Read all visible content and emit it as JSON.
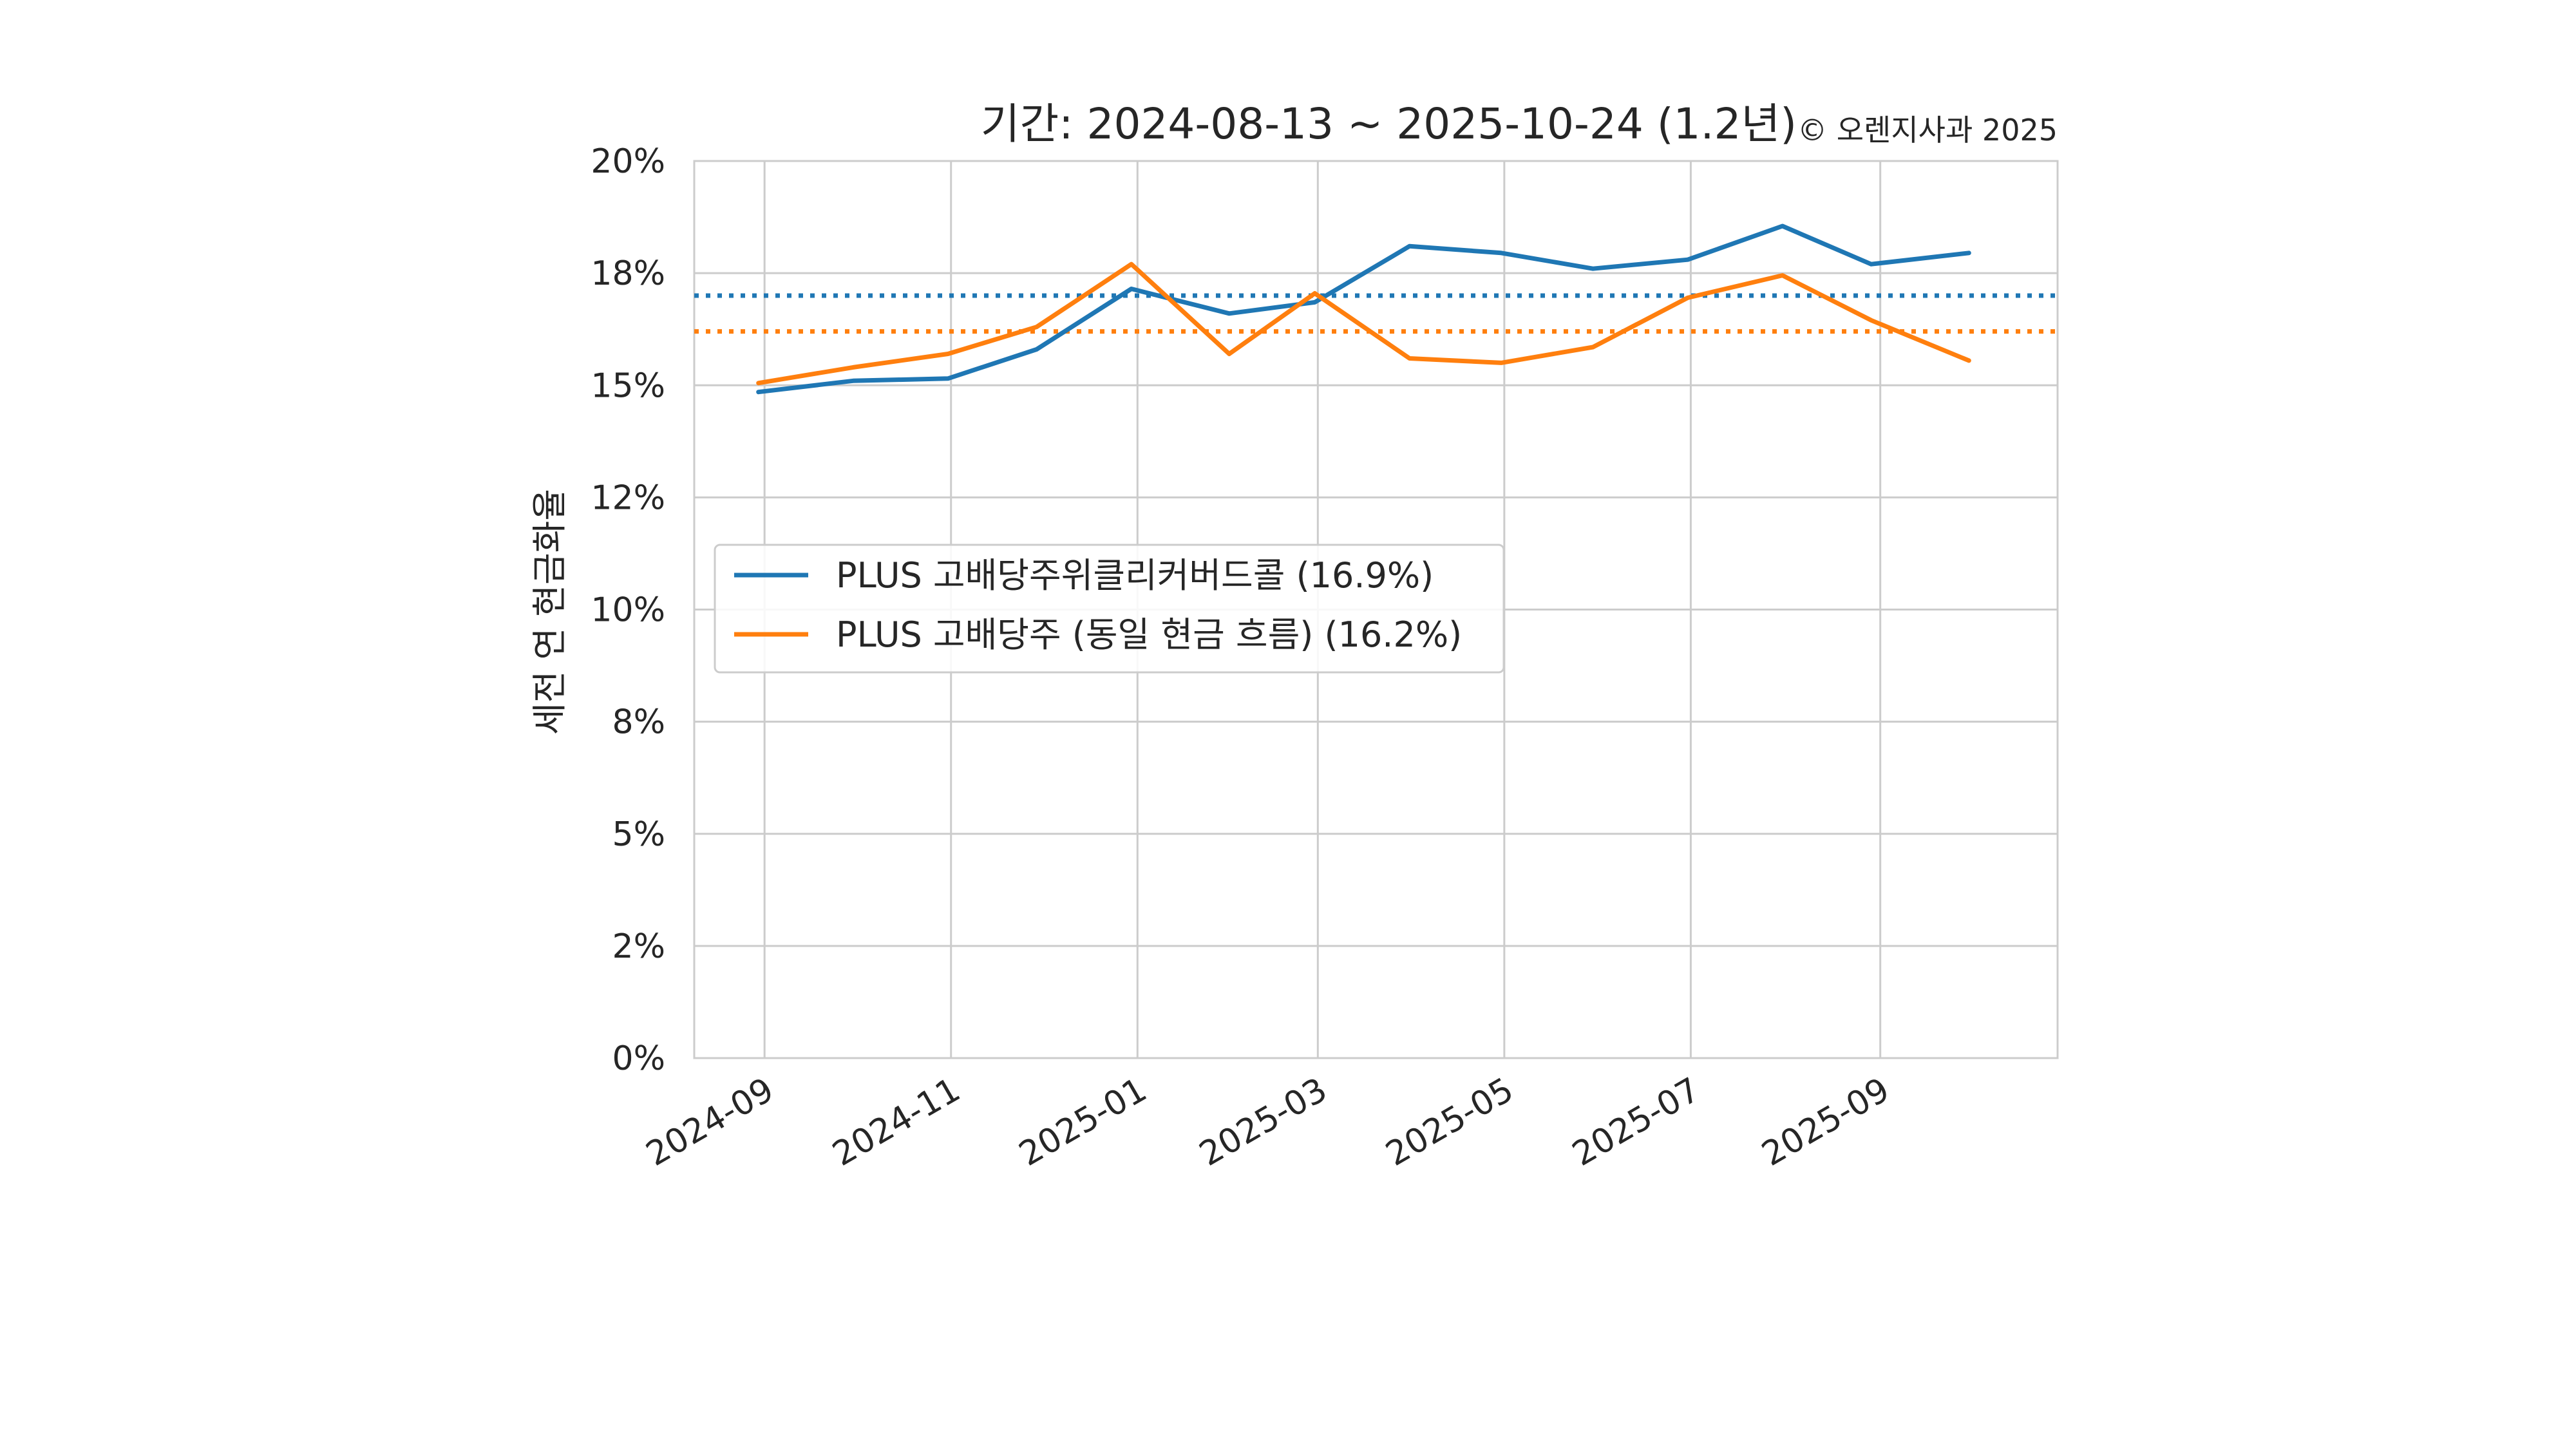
{
  "chart_data": {
    "type": "line",
    "title": "기간: 2024-08-13 ~ 2025-10-24 (1.2년)",
    "copyright": "© 오렌지사과 2025",
    "ylabel": "세전 연 현금화율",
    "xlabel": "",
    "ylim": [
      0,
      20
    ],
    "xlim": [
      "2024-08-09",
      "2025-10-29"
    ],
    "yticks": [
      0,
      2.5,
      5,
      7.5,
      10,
      12.5,
      15,
      17.5,
      20
    ],
    "ytick_labels": [
      "0%",
      "2%",
      "5%",
      "8%",
      "10%",
      "12%",
      "15%",
      "18%",
      "20%"
    ],
    "xticks": [
      "2024-09-01",
      "2024-11-01",
      "2025-01-01",
      "2025-03-01",
      "2025-05-01",
      "2025-07-01",
      "2025-09-01"
    ],
    "xtick_labels": [
      "2024-09",
      "2024-11",
      "2025-01",
      "2025-03",
      "2025-05",
      "2025-07",
      "2025-09"
    ],
    "grid": true,
    "legend_position": "center-left",
    "x": [
      "2024-08-30",
      "2024-09-30",
      "2024-10-31",
      "2024-11-29",
      "2024-12-30",
      "2025-01-31",
      "2025-02-28",
      "2025-03-31",
      "2025-04-30",
      "2025-05-30",
      "2025-06-30",
      "2025-07-31",
      "2025-08-29",
      "2025-09-30"
    ],
    "series": [
      {
        "name": "PLUS 고배당주위클리커버드콜 (16.9%)",
        "color": "#1f77b4",
        "values": [
          14.85,
          15.1,
          15.15,
          15.8,
          17.15,
          16.6,
          16.85,
          18.1,
          17.95,
          17.6,
          17.8,
          18.55,
          17.7,
          17.95
        ],
        "mean": 17.0
      },
      {
        "name": "PLUS 고배당주 (동일 현금 흐름) (16.2%)",
        "color": "#ff7f0e",
        "values": [
          15.05,
          15.4,
          15.7,
          16.3,
          17.7,
          15.7,
          17.05,
          15.6,
          15.5,
          15.85,
          16.95,
          17.45,
          16.45,
          15.55
        ],
        "mean": 16.2
      }
    ]
  }
}
